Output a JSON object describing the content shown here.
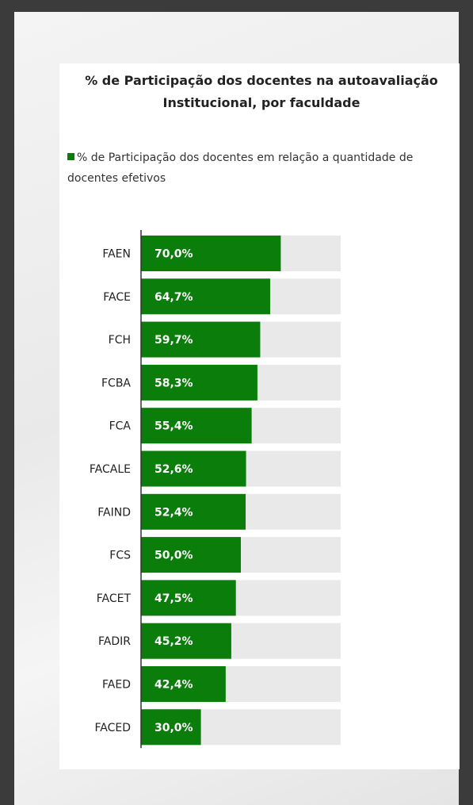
{
  "chart_data": {
    "type": "bar",
    "orientation": "horizontal",
    "title": "% de Participação dos docentes na autoavaliação Institucional, por faculdade",
    "categories": [
      "FAEN",
      "FACE",
      "FCH",
      "FCBA",
      "FCA",
      "FACALE",
      "FAIND",
      "FCS",
      "FACET",
      "FADIR",
      "FAED",
      "FACED"
    ],
    "series": [
      {
        "name": "% de Participação dos docentes em relação a quantidade de docentes efetivos",
        "color": "#0b7d0b",
        "values": [
          70.0,
          64.7,
          59.7,
          58.3,
          55.4,
          52.6,
          52.4,
          50.0,
          47.5,
          45.2,
          42.4,
          30.0
        ],
        "value_labels": [
          "70,0%",
          "64,7%",
          "59,7%",
          "58,3%",
          "55,4%",
          "52,6%",
          "52,4%",
          "50,0%",
          "47,5%",
          "45,2%",
          "42,4%",
          "30,0%"
        ]
      }
    ],
    "xlim": [
      0,
      100
    ],
    "track_color": "#e9e9e9"
  }
}
